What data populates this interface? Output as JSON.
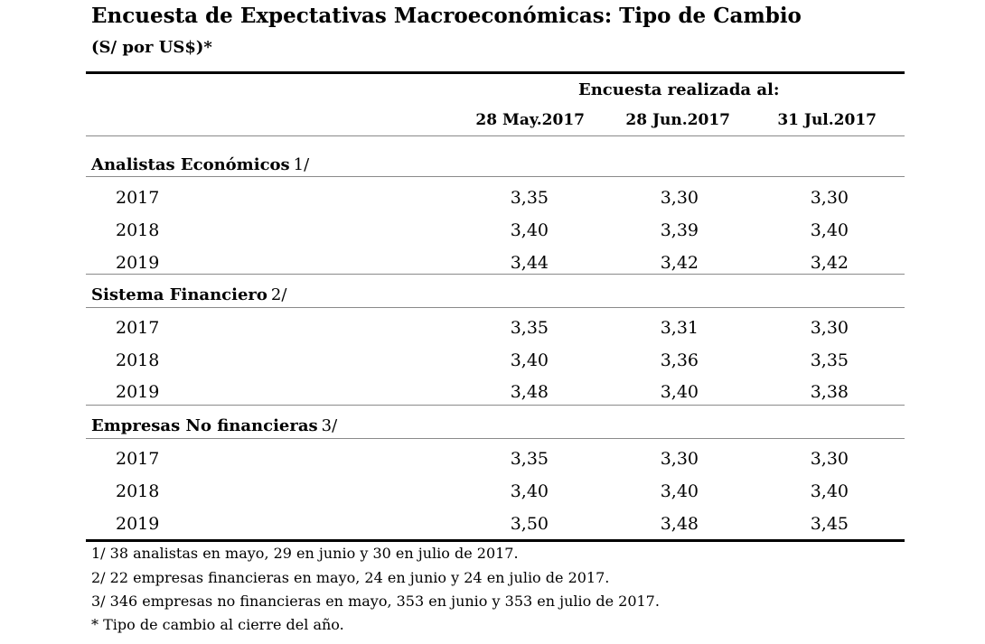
{
  "title": "Encuesta de Expectativas Macroeconómicas: Tipo de Cambio",
  "unit": "(S/ por US$)*",
  "survey_label": "Encuesta realizada al:",
  "columns": [
    "28 May.2017",
    "28 Jun.2017",
    "31 Jul.2017"
  ],
  "groups": [
    {
      "label": "Analistas Económicos",
      "note": "1/",
      "rows": [
        {
          "year": "2017",
          "values": [
            "3,35",
            "3,30",
            "3,30"
          ]
        },
        {
          "year": "2018",
          "values": [
            "3,40",
            "3,39",
            "3,40"
          ]
        },
        {
          "year": "2019",
          "values": [
            "3,44",
            "3,42",
            "3,42"
          ]
        }
      ]
    },
    {
      "label": "Sistema Financiero",
      "note": "2/",
      "rows": [
        {
          "year": "2017",
          "values": [
            "3,35",
            "3,31",
            "3,30"
          ]
        },
        {
          "year": "2018",
          "values": [
            "3,40",
            "3,36",
            "3,35"
          ]
        },
        {
          "year": "2019",
          "values": [
            "3,48",
            "3,40",
            "3,38"
          ]
        }
      ]
    },
    {
      "label": "Empresas No financieras",
      "note": "3/",
      "rows": [
        {
          "year": "2017",
          "values": [
            "3,35",
            "3,30",
            "3,30"
          ]
        },
        {
          "year": "2018",
          "values": [
            "3,40",
            "3,40",
            "3,40"
          ]
        },
        {
          "year": "2019",
          "values": [
            "3,50",
            "3,48",
            "3,45"
          ]
        }
      ]
    }
  ],
  "footnotes": [
    "1/ 38 analistas en mayo, 29 en junio y 30 en julio de 2017.",
    "2/ 22 empresas financieras en mayo, 24 en junio y 24 en julio de 2017.",
    "3/ 346 empresas no financieras en mayo, 353 en junio y 353 en julio de 2017.",
    "* Tipo de cambio al cierre del año."
  ]
}
